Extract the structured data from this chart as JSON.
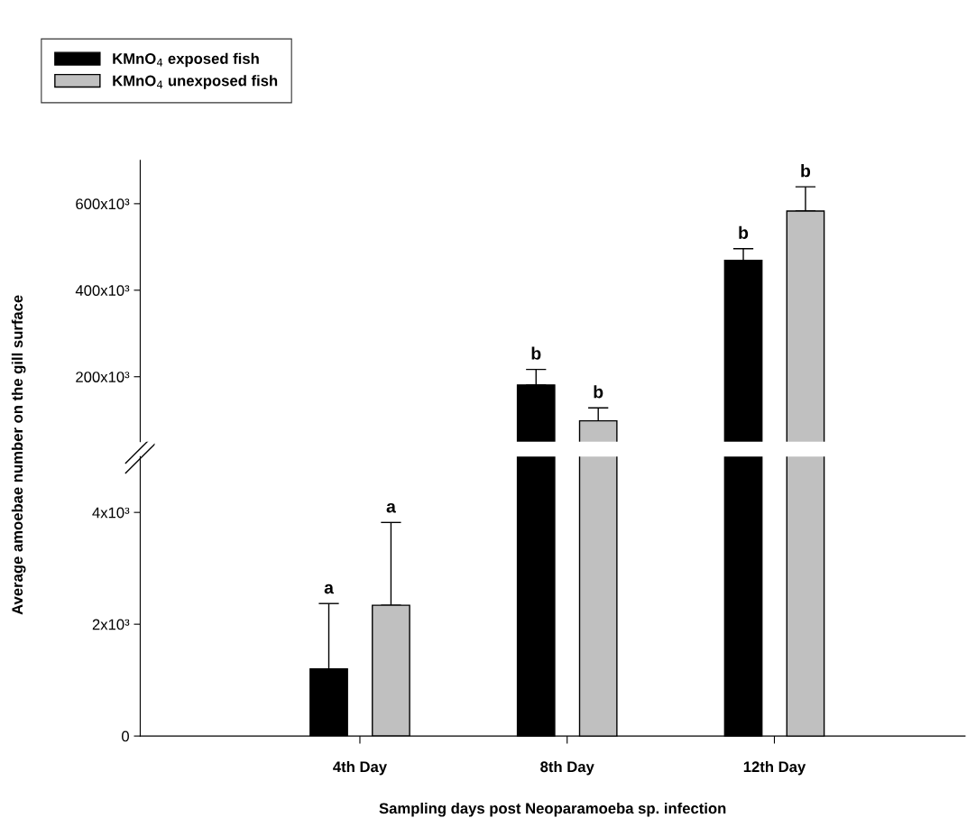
{
  "chart_data": [
    {
      "type": "bar",
      "ylabel": "Average amoebae number on the gill surface",
      "categories": [
        null,
        null,
        null
      ],
      "series": [
        {
          "name": "KMnO$_{4}$ exposed fish",
          "color": "#000000",
          "values": [
            null,
            181000,
            469000
          ],
          "errors": [
            null,
            [
              181000,
              217000
            ],
            [
              469000,
              496000
            ]
          ]
        },
        {
          "name": "KMnO$_{4}$ unexposed fish",
          "color": "#c0c0c0",
          "values": [
            null,
            98000,
            583000
          ],
          "errors": [
            null,
            [
              98000,
              128000
            ],
            [
              583000,
              639000
            ]
          ]
        }
      ],
      "ylim": [
        50000,
        700000
      ],
      "yticks": [
        {
          "value": 200000,
          "label": "200x10³"
        },
        {
          "value": 400000,
          "label": "400x10³"
        },
        {
          "value": 600000,
          "label": "600x10³"
        }
      ],
      "tick_labels": "y",
      "legend": "top left",
      "annotations": [
        "b",
        "b",
        "b",
        "b"
      ]
    },
    {
      "type": "bar",
      "xlabel": "Sampling days post Neoparamoeba sp. infection",
      "categories": [
        "4th Day",
        "8th Day",
        "12th Day"
      ],
      "series": [
        {
          "color": "#000000",
          "values": [
            1200,
            null,
            null
          ],
          "errors": [
            [
              1200,
              2370
            ],
            null,
            null
          ]
        },
        {
          "color": "#c0c0c0",
          "values": [
            2340,
            null,
            null
          ],
          "errors": [
            [
              2340,
              3820
            ],
            null,
            null
          ]
        }
      ],
      "ylim": [
        0,
        5000
      ],
      "yticks": [
        0,
        {
          "value": 2000,
          "label": "2x10³"
        },
        {
          "value": 4000,
          "label": "4x10³"
        }
      ],
      "annotations": [
        "a",
        "a"
      ]
    }
  ]
}
